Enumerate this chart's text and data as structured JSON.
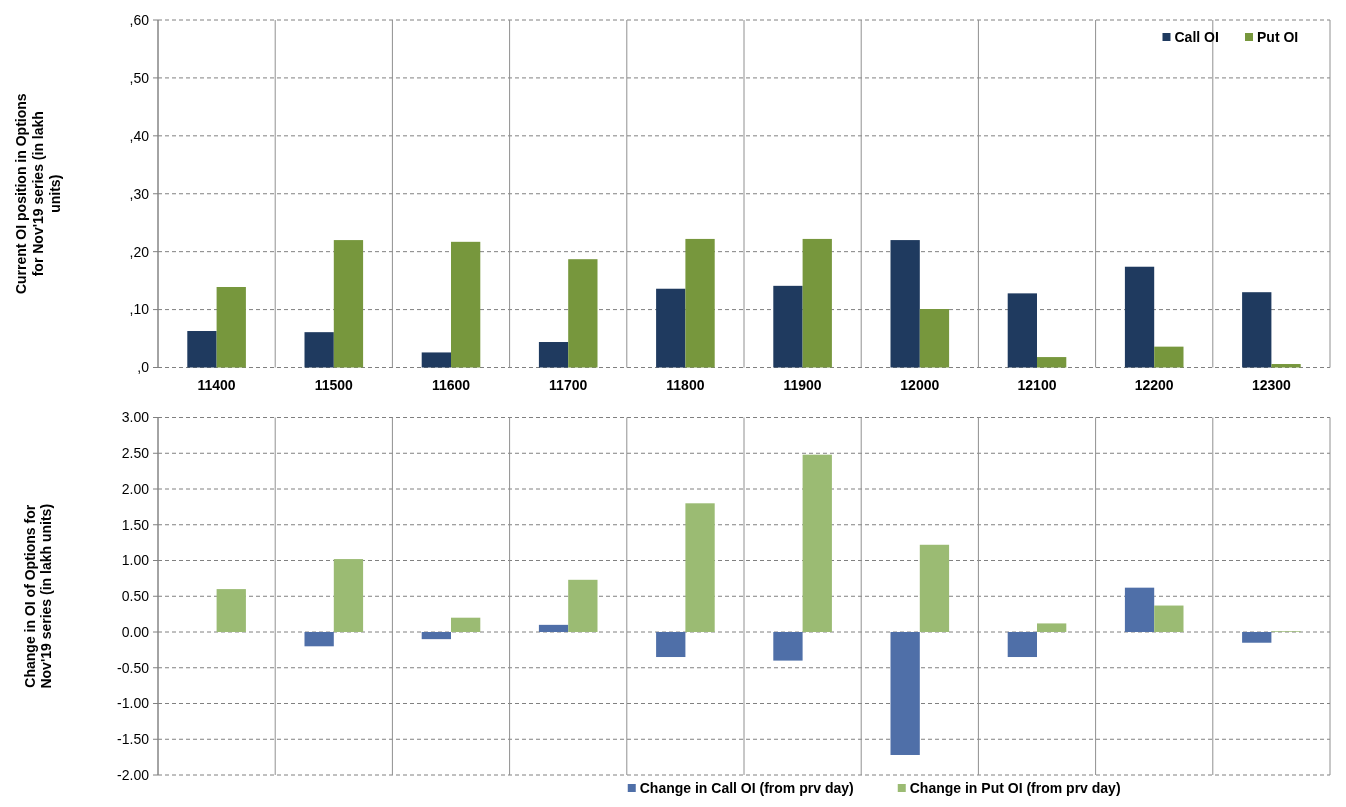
{
  "chart_data": [
    {
      "type": "bar",
      "ylabel": "Current OI position in Options for Nov'19 series (in lakh units)",
      "categories": [
        "11400",
        "11500",
        "11600",
        "11700",
        "11800",
        "11900",
        "12000",
        "12100",
        "12200",
        "12300"
      ],
      "series": [
        {
          "name": "Call OI",
          "color": "#1f3a5f",
          "values": [
            6.3,
            6.1,
            2.6,
            4.4,
            13.6,
            14.1,
            22.0,
            12.8,
            17.4,
            13.0
          ]
        },
        {
          "name": "Put OI",
          "color": "#77973d",
          "values": [
            13.9,
            22.0,
            21.7,
            18.7,
            22.2,
            22.2,
            10.1,
            1.8,
            3.6,
            0.6
          ]
        }
      ],
      "ylim": [
        0,
        60
      ],
      "yticks": [
        {
          "value": 0,
          "label": ",0"
        },
        {
          "value": 10,
          "label": ",10"
        },
        {
          "value": 20,
          "label": ",20"
        },
        {
          "value": 30,
          "label": ",30"
        },
        {
          "value": 40,
          "label": ",40"
        },
        {
          "value": 50,
          "label": ",50"
        },
        {
          "value": 60,
          "label": ",60"
        }
      ],
      "grid": true,
      "legend": "top right"
    },
    {
      "type": "bar",
      "ylabel": "Change in OI of Options for Nov'19 series (in lakh units)",
      "categories": [
        null,
        null,
        null,
        null,
        null,
        null,
        null,
        null,
        null,
        null
      ],
      "series": [
        {
          "name": "Change in Call OI (from prv day)",
          "color": "#4f6fa8",
          "values": [
            0.0,
            -0.2,
            -0.1,
            0.1,
            -0.35,
            -0.4,
            -1.72,
            -0.35,
            0.62,
            -0.15
          ]
        },
        {
          "name": "Change in Put OI (from prv day)",
          "color": "#9bbb73",
          "values": [
            0.6,
            1.02,
            0.2,
            0.73,
            1.8,
            2.48,
            1.22,
            0.12,
            0.37,
            0.01
          ]
        }
      ],
      "ylim": [
        -2,
        3
      ],
      "yticks": [
        {
          "value": -2,
          "label": "-2.00"
        },
        {
          "value": -1.5,
          "label": "-1.50"
        },
        {
          "value": -1,
          "label": "-1.00"
        },
        {
          "value": -0.5,
          "label": "-0.50"
        },
        {
          "value": 0,
          "label": "0.00"
        },
        {
          "value": 0.5,
          "label": "0.50"
        },
        {
          "value": 1,
          "label": "1.00"
        },
        {
          "value": 1.5,
          "label": "1.50"
        },
        {
          "value": 2,
          "label": "2.00"
        },
        {
          "value": 2.5,
          "label": "2.50"
        },
        {
          "value": 3,
          "label": "3.00"
        }
      ],
      "grid": true,
      "legend": "bottom"
    }
  ]
}
